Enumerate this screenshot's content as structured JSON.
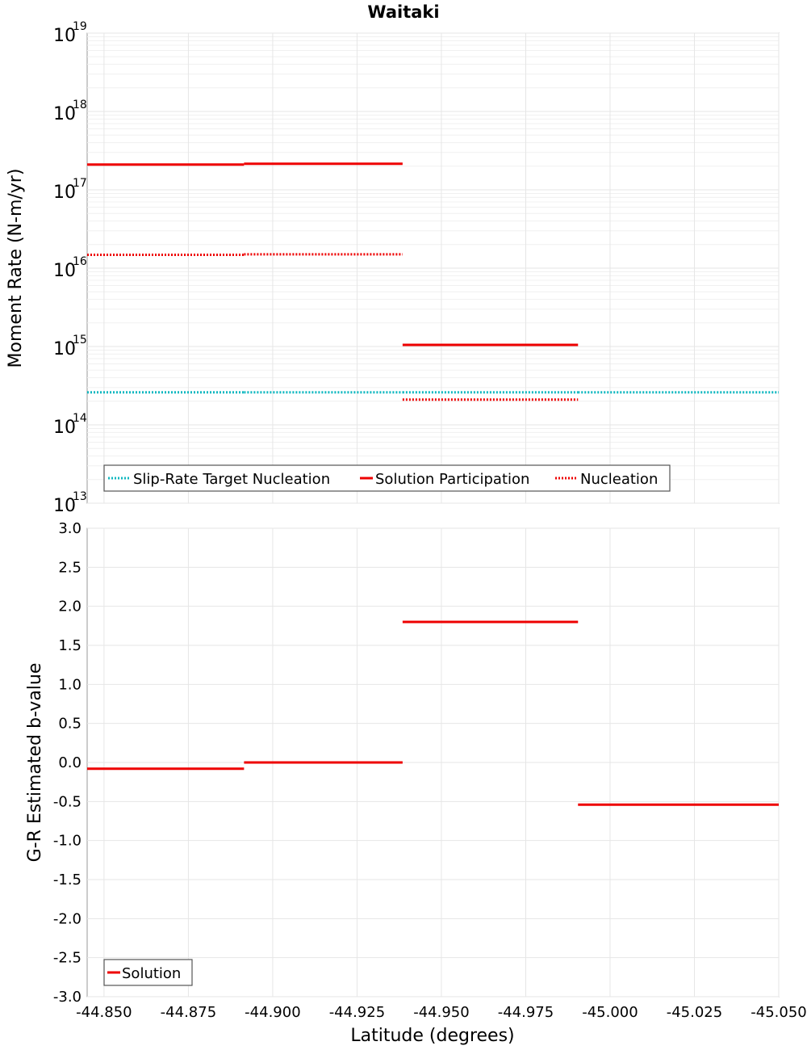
{
  "chart_data": [
    {
      "type": "line",
      "title": "Waitaki",
      "ylabel": "Moment Rate (N-m/yr)",
      "yscale": "log",
      "ylim": [
        10000000000000.0,
        1e+19
      ],
      "y_tick_exponents": [
        "13",
        "14",
        "15",
        "16",
        "17",
        "18",
        "19"
      ],
      "y_tick_base": "10",
      "xlim": [
        -44.845,
        -45.05
      ],
      "grid": true,
      "legend_position": "bottom-left",
      "series": [
        {
          "name": "Slip-Rate Target Nucleation",
          "color": "#10b8c0",
          "style": "dotted",
          "segments": [
            {
              "x": [
                -44.845,
                -44.8915
              ],
              "y": 260000000000000.0
            },
            {
              "x": [
                -44.8915,
                -44.9385
              ],
              "y": 260000000000000.0
            },
            {
              "x": [
                -44.9385,
                -44.9905
              ],
              "y": 260000000000000.0
            },
            {
              "x": [
                -44.9905,
                -45.05
              ],
              "y": 260000000000000.0
            }
          ]
        },
        {
          "name": "Solution Participation",
          "color": "#ee0000",
          "style": "solid",
          "segments": [
            {
              "x": [
                -44.845,
                -44.8915
              ],
              "y": 2.1e+17
            },
            {
              "x": [
                -44.8915,
                -44.9385
              ],
              "y": 2.15e+17
            },
            {
              "x": [
                -44.9385,
                -44.9905
              ],
              "y": 1050000000000000.0
            }
          ]
        },
        {
          "name": "Nucleation",
          "color": "#ee0000",
          "style": "dotted",
          "segments": [
            {
              "x": [
                -44.845,
                -44.8915
              ],
              "y": 1.48e+16
            },
            {
              "x": [
                -44.8915,
                -44.9385
              ],
              "y": 1.5e+16
            },
            {
              "x": [
                -44.9385,
                -44.9905
              ],
              "y": 210000000000000.0
            }
          ]
        }
      ]
    },
    {
      "type": "line",
      "xlabel": "Latitude (degrees)",
      "ylabel": "G-R Estimated b-value",
      "ylim": [
        -3.0,
        3.0
      ],
      "y_ticks": [
        "3.0",
        "2.5",
        "2.0",
        "1.5",
        "1.0",
        "0.5",
        "0.0",
        "-0.5",
        "-1.0",
        "-1.5",
        "-2.0",
        "-2.5",
        "-3.0"
      ],
      "xlim": [
        -44.845,
        -45.05
      ],
      "x_ticks": [
        "-44.850",
        "-44.875",
        "-44.900",
        "-44.925",
        "-44.950",
        "-44.975",
        "-45.000",
        "-45.025",
        "-45.050"
      ],
      "grid": true,
      "legend_position": "bottom-left",
      "series": [
        {
          "name": "Solution",
          "color": "#ee0000",
          "style": "solid",
          "segments": [
            {
              "x": [
                -44.845,
                -44.8915
              ],
              "y": -0.08
            },
            {
              "x": [
                -44.8915,
                -44.9385
              ],
              "y": 0.0
            },
            {
              "x": [
                -44.9385,
                -44.9905
              ],
              "y": 1.8
            },
            {
              "x": [
                -44.9905,
                -45.05
              ],
              "y": -0.54
            }
          ]
        }
      ]
    }
  ]
}
